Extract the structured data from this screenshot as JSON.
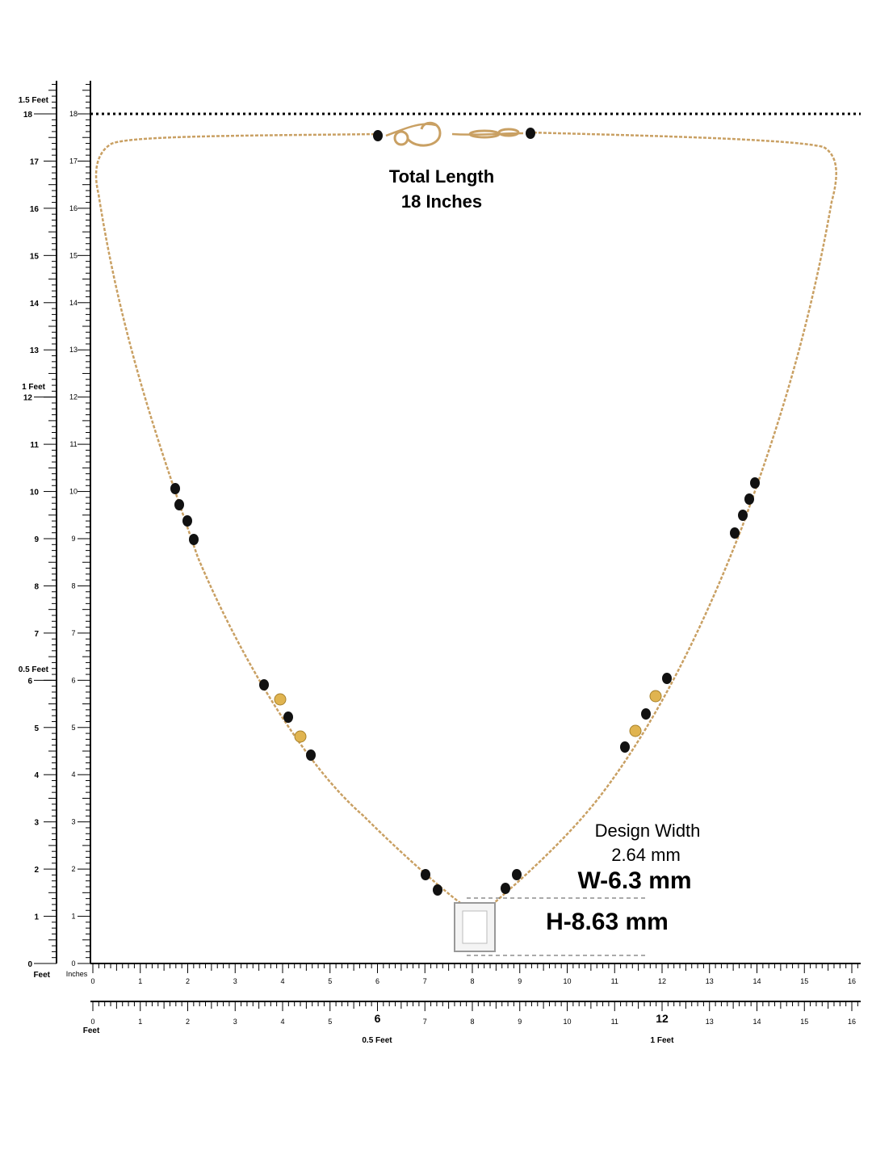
{
  "left_ruler": {
    "feet_scale": [
      0,
      1,
      2,
      3,
      4,
      5,
      6,
      7,
      8,
      9,
      10,
      11,
      12,
      13,
      14,
      15,
      16,
      17,
      18
    ],
    "inch_scale": [
      0,
      1,
      2,
      3,
      4,
      5,
      6,
      7,
      8,
      9,
      10,
      11,
      12,
      13,
      14,
      15,
      16,
      17,
      18
    ],
    "feet_marks": [
      "1.5 Feet",
      "1 Feet",
      "0.5 Feet",
      "Feet"
    ],
    "unit": "Inches"
  },
  "bottom_ruler": {
    "inch_scale": [
      0,
      1,
      2,
      3,
      4,
      5,
      6,
      7,
      8,
      9,
      10,
      11,
      12,
      13,
      14,
      15,
      16
    ],
    "feet_scale": [
      0,
      1,
      2,
      3,
      4,
      5,
      6,
      7,
      8,
      9,
      10,
      11,
      12,
      13,
      14,
      15,
      16
    ],
    "feet_marks": [
      "Feet",
      "0.5 Feet",
      "1 Feet"
    ]
  },
  "annotations": {
    "total_length": [
      "Total Length",
      "18 Inches"
    ],
    "design_width": [
      "Design Width",
      "2.64 mm"
    ],
    "width": "W-6.3 mm",
    "height": "H-8.63 mm"
  }
}
